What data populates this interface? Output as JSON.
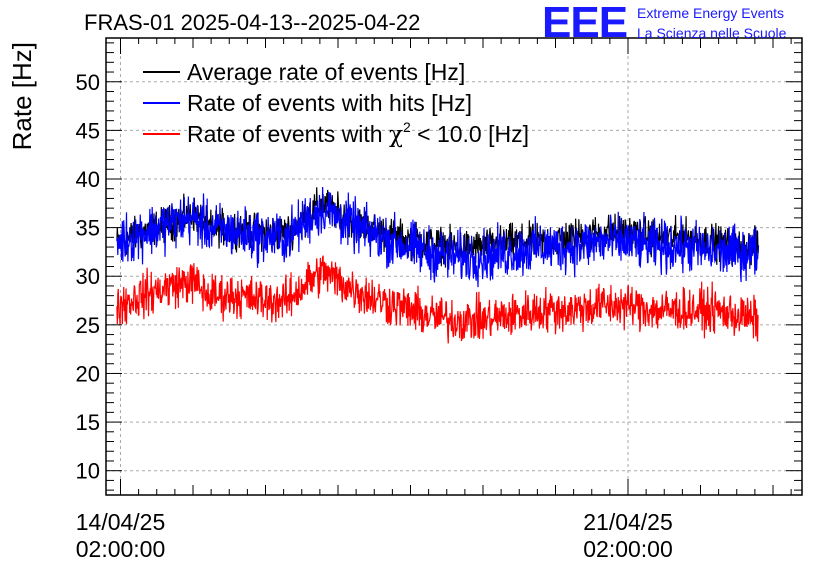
{
  "header": {
    "title": "FRAS-01 2025-04-13--2025-04-22",
    "logo_text": "EEE",
    "logo_line1": "Extreme Energy Events",
    "logo_line2": "La Scienza nelle Scuole"
  },
  "colors": {
    "average": "#000000",
    "hits": "#0000ff",
    "chi2": "#ff0000",
    "logo": "#1a1aff",
    "grid": "#aaaaaa"
  },
  "chart_data": {
    "type": "line",
    "title": "FRAS-01 2025-04-13--2025-04-22",
    "ylabel": "Rate [Hz]",
    "xlabel": "",
    "ylim": [
      7.5,
      54.5
    ],
    "xlim_days": [
      -0.2,
      9.4
    ],
    "x_unit": "days since 14/04/25 02:00:00",
    "yticks": [
      10,
      15,
      20,
      25,
      30,
      35,
      40,
      45,
      50
    ],
    "xticks": [
      {
        "day": 0,
        "line1": "14/04/25",
        "line2": "02:00:00"
      },
      {
        "day": 7,
        "line1": "21/04/25",
        "line2": "02:00:00"
      }
    ],
    "grid": true,
    "legend_position": "top-left",
    "legend": [
      {
        "label": "Average rate of events [Hz]",
        "color": "#000000"
      },
      {
        "label": "Rate of events with hits [Hz]",
        "color": "#0000ff"
      },
      {
        "label_prefix": "Rate of events with ",
        "label_chi": "χ",
        "label_sup": "2",
        "label_suffix": " < 10.0 [Hz]",
        "color": "#ff0000"
      }
    ],
    "x_start_day": -0.05,
    "x_end_day": 8.8,
    "series": [
      {
        "name": "Average rate of events [Hz]",
        "color": "#000000",
        "x": [
          -0.05,
          0.3,
          0.7,
          1.0,
          1.2,
          1.6,
          2.0,
          2.3,
          2.6,
          2.8,
          3.0,
          3.4,
          3.8,
          4.2,
          4.6,
          5.0,
          5.4,
          5.8,
          6.2,
          6.6,
          7.0,
          7.4,
          7.8,
          8.2,
          8.5,
          8.8
        ],
        "y": [
          33.5,
          34.5,
          35.5,
          36.5,
          35.0,
          35.0,
          34.5,
          34.5,
          36.5,
          37.5,
          36.5,
          35.0,
          34.0,
          33.5,
          33.0,
          33.0,
          33.5,
          33.5,
          34.0,
          34.5,
          34.5,
          34.0,
          34.0,
          33.5,
          33.0,
          33.0
        ],
        "noise": 0.9
      },
      {
        "name": "Rate of events with hits [Hz]",
        "color": "#0000ff",
        "x": [
          -0.05,
          0.3,
          0.7,
          1.0,
          1.2,
          1.6,
          2.0,
          2.3,
          2.6,
          2.8,
          3.0,
          3.4,
          3.8,
          4.2,
          4.6,
          5.0,
          5.4,
          5.8,
          6.2,
          6.6,
          7.0,
          7.4,
          7.8,
          8.2,
          8.5,
          8.8
        ],
        "y": [
          33.5,
          34.5,
          35.5,
          36.0,
          35.0,
          34.5,
          34.0,
          34.0,
          36.0,
          37.0,
          36.0,
          34.5,
          33.5,
          32.5,
          32.0,
          32.0,
          32.5,
          33.0,
          33.0,
          33.5,
          33.5,
          33.0,
          33.0,
          32.5,
          32.5,
          32.5
        ],
        "noise": 1.3
      },
      {
        "name": "Rate of events with chi2 < 10.0 [Hz]",
        "color": "#ff0000",
        "x": [
          -0.05,
          0.3,
          0.7,
          1.0,
          1.2,
          1.6,
          2.0,
          2.3,
          2.6,
          2.8,
          3.0,
          3.4,
          3.8,
          4.2,
          4.6,
          5.0,
          5.4,
          5.8,
          6.2,
          6.6,
          7.0,
          7.4,
          7.8,
          8.2,
          8.5,
          8.8
        ],
        "y": [
          27.0,
          28.0,
          29.0,
          29.5,
          28.0,
          28.0,
          27.5,
          27.5,
          29.5,
          30.5,
          29.5,
          28.0,
          27.0,
          26.0,
          25.5,
          25.5,
          26.0,
          26.5,
          26.5,
          27.0,
          27.0,
          26.5,
          26.5,
          26.5,
          26.0,
          25.5
        ],
        "noise": 1.1
      }
    ]
  }
}
